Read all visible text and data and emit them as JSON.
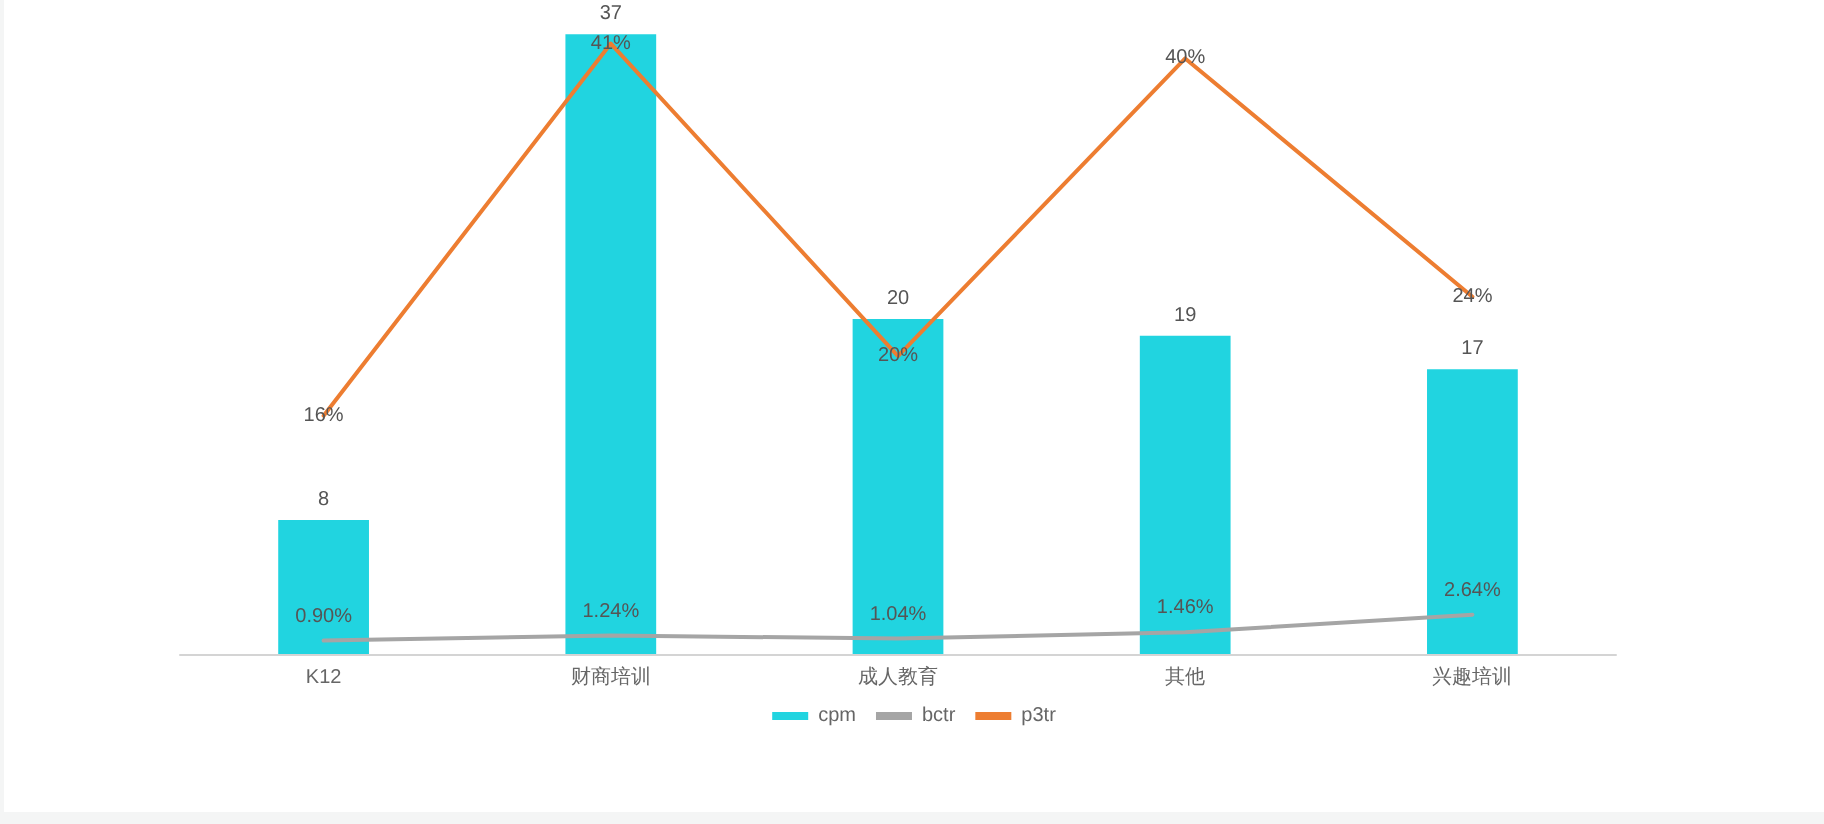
{
  "chart_data": {
    "type": "bar",
    "categories": [
      "K12",
      "财商培训",
      "成人教育",
      "其他",
      "兴趣培训"
    ],
    "series": [
      {
        "name": "cpm",
        "color": "#21d4e0",
        "values": [
          8,
          37,
          20,
          19,
          17
        ],
        "value_labels": [
          "8",
          "37",
          "20",
          "19",
          "17"
        ]
      },
      {
        "name": "bctr",
        "type": "line",
        "axis": "y2",
        "color": "#a5a5a5",
        "values": [
          0.9,
          1.24,
          1.04,
          1.46,
          2.64
        ],
        "value_labels": [
          "0.90%",
          "1.24%",
          "1.04%",
          "1.46%",
          "2.64%"
        ]
      },
      {
        "name": "p3tr",
        "type": "line",
        "axis": "y2",
        "color": "#ed7d31",
        "values": [
          16,
          41,
          20,
          40,
          24
        ],
        "value_labels": [
          "16%",
          "41%",
          "20%",
          "40%",
          "24%"
        ]
      }
    ],
    "tick_labels": "x",
    "legend": "bottom",
    "marker": "none",
    "line_style": "solid"
  }
}
